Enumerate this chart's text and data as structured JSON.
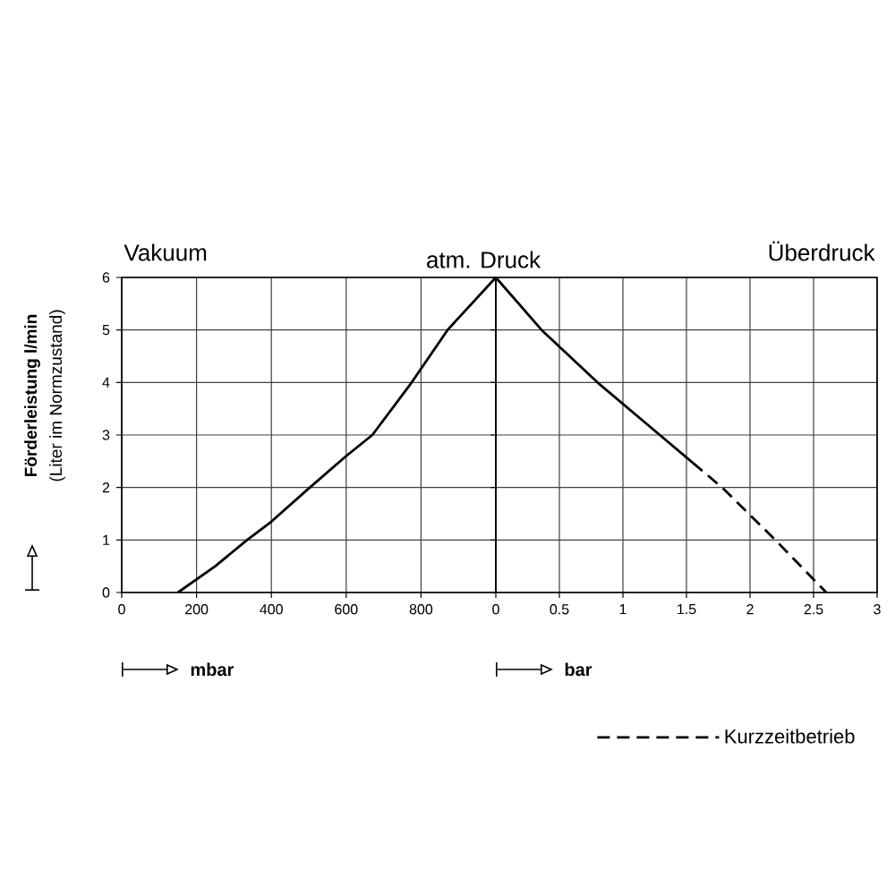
{
  "chart_data": [
    {
      "type": "line",
      "title": "Vakuum",
      "ylabel": "Förderleistung l/min",
      "xlabel": "mbar",
      "annotations": [
        {
          "text": "atm. Druck",
          "x": 1000,
          "y": 6
        },
        "(Liter im Normzustand)"
      ],
      "xlim": [
        0,
        1000
      ],
      "xticks": [
        0,
        200,
        400,
        600,
        800
      ],
      "ylim": [
        0,
        6
      ],
      "yticks": [
        0,
        1,
        2,
        3,
        4,
        5,
        6
      ],
      "grid": true,
      "marker": "none",
      "series": [
        {
          "color": "#000000",
          "line_style": "solid",
          "x": [
            150,
            250,
            335,
            400,
            503,
            600,
            670,
            775,
            871,
            1000
          ],
          "values": [
            0,
            0.5,
            1,
            1.35,
            2,
            2.6,
            3,
            4,
            5,
            6
          ]
        }
      ]
    },
    {
      "type": "line",
      "title": "Überdruck",
      "xlabel": "bar",
      "xlim": [
        0,
        3
      ],
      "xticks": [
        0,
        0.5,
        1,
        1.5,
        2,
        2.5,
        3
      ],
      "ylim": [
        0,
        6
      ],
      "yticks": [
        0,
        1,
        2,
        3,
        4,
        5,
        6
      ],
      "grid": true,
      "marker": "none",
      "tick_labels": "x",
      "legend": "bottom right",
      "series": [
        {
          "color": "#000000",
          "line_style": "solid",
          "x": [
            0,
            0.36,
            0.8,
            1.29,
            1.55
          ],
          "values": [
            6,
            5,
            4,
            3,
            2.47
          ]
        },
        {
          "name": "Kurzzeitbetrieb",
          "color": "#000000",
          "line_style": "dashed",
          "x": [
            1.55,
            1.78,
            2.2,
            2.6
          ],
          "values": [
            2.47,
            2,
            1,
            0
          ]
        }
      ]
    }
  ]
}
